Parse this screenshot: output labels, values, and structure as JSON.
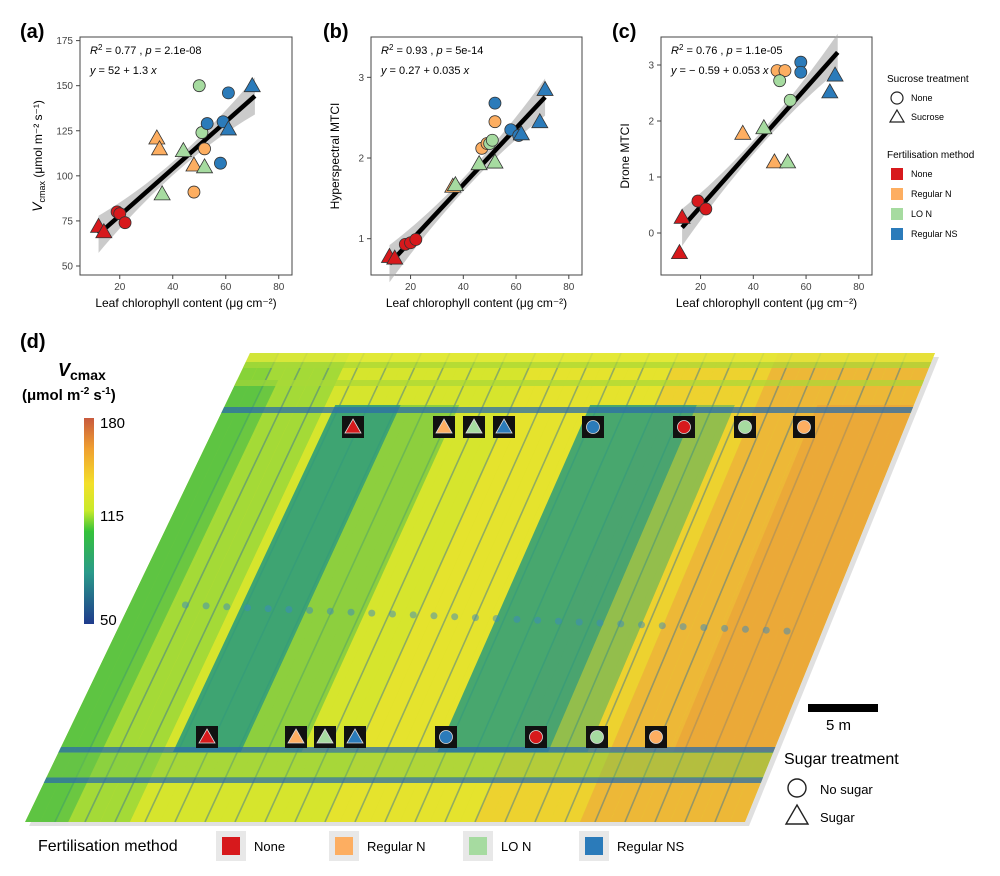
{
  "panels": {
    "a": "(a)",
    "b": "(b)",
    "c": "(c)",
    "d": "(d)"
  },
  "colors": {
    "None": "#d7191c",
    "Regular N": "#fdae61",
    "LO N": "#a6dba0",
    "Regular NS": "#2b7bba"
  },
  "chart_data": [
    {
      "type": "scatter",
      "id": "a",
      "stats": {
        "r2_text": "= 0.77 , ",
        "p_text": "= 2.1e-08",
        "eq_text": "= 52 + 1.3 "
      },
      "xlabel": "Leaf chlorophyll content  (μg cm⁻²)",
      "ylabel_main": "V",
      "ylabel_sub": "cmax",
      "ylabel_unit": "(μmol m⁻² s⁻¹)",
      "xlim": [
        5,
        85
      ],
      "ylim": [
        45,
        177
      ],
      "xticks": [
        20,
        40,
        60,
        80
      ],
      "yticks": [
        50,
        75,
        100,
        125,
        150,
        175
      ],
      "fit": {
        "intercept": 52,
        "slope": 1.3,
        "x0": 12,
        "x1": 71
      },
      "points": [
        {
          "x": 12,
          "y": 72,
          "g": "None",
          "s": "tri"
        },
        {
          "x": 14,
          "y": 69,
          "g": "None",
          "s": "tri"
        },
        {
          "x": 19,
          "y": 80,
          "g": "None",
          "s": "circ"
        },
        {
          "x": 20,
          "y": 79,
          "g": "None",
          "s": "circ"
        },
        {
          "x": 22,
          "y": 74,
          "g": "None",
          "s": "circ"
        },
        {
          "x": 34,
          "y": 121,
          "g": "Regular N",
          "s": "tri"
        },
        {
          "x": 35,
          "y": 115,
          "g": "Regular N",
          "s": "tri"
        },
        {
          "x": 48,
          "y": 106,
          "g": "Regular N",
          "s": "tri"
        },
        {
          "x": 48,
          "y": 91,
          "g": "Regular N",
          "s": "circ"
        },
        {
          "x": 52,
          "y": 115,
          "g": "Regular N",
          "s": "circ"
        },
        {
          "x": 36,
          "y": 90,
          "g": "LO N",
          "s": "tri"
        },
        {
          "x": 44,
          "y": 114,
          "g": "LO N",
          "s": "tri"
        },
        {
          "x": 52,
          "y": 105,
          "g": "LO N",
          "s": "tri"
        },
        {
          "x": 50,
          "y": 150,
          "g": "LO N",
          "s": "circ"
        },
        {
          "x": 51,
          "y": 124,
          "g": "LO N",
          "s": "circ"
        },
        {
          "x": 53,
          "y": 129,
          "g": "Regular NS",
          "s": "circ"
        },
        {
          "x": 58,
          "y": 107,
          "g": "Regular NS",
          "s": "circ"
        },
        {
          "x": 59,
          "y": 130,
          "g": "Regular NS",
          "s": "circ"
        },
        {
          "x": 61,
          "y": 146,
          "g": "Regular NS",
          "s": "circ"
        },
        {
          "x": 61,
          "y": 126,
          "g": "Regular NS",
          "s": "tri"
        },
        {
          "x": 70,
          "y": 150,
          "g": "Regular NS",
          "s": "tri"
        }
      ]
    },
    {
      "type": "scatter",
      "id": "b",
      "stats": {
        "r2_text": "= 0.93 , ",
        "p_text": "= 5e-14",
        "eq_text": "= 0.27 + 0.035 "
      },
      "xlabel": "Leaf chlorophyll content  (μg cm⁻²)",
      "ylabel": "Hyperspectral MTCI",
      "xlim": [
        5,
        85
      ],
      "ylim": [
        0.55,
        3.5
      ],
      "xticks": [
        20,
        40,
        60,
        80
      ],
      "yticks": [
        1,
        2,
        3
      ],
      "fit": {
        "intercept": 0.27,
        "slope": 0.035,
        "x0": 12,
        "x1": 71
      },
      "points": [
        {
          "x": 12,
          "y": 0.78,
          "g": "None",
          "s": "tri"
        },
        {
          "x": 14,
          "y": 0.76,
          "g": "None",
          "s": "tri"
        },
        {
          "x": 18,
          "y": 0.93,
          "g": "None",
          "s": "circ"
        },
        {
          "x": 20,
          "y": 0.95,
          "g": "None",
          "s": "circ"
        },
        {
          "x": 22,
          "y": 0.99,
          "g": "None",
          "s": "circ"
        },
        {
          "x": 36,
          "y": 1.65,
          "g": "Regular N",
          "s": "tri"
        },
        {
          "x": 47,
          "y": 2.12,
          "g": "Regular N",
          "s": "circ"
        },
        {
          "x": 49,
          "y": 2.18,
          "g": "Regular N",
          "s": "circ"
        },
        {
          "x": 52,
          "y": 2.45,
          "g": "Regular N",
          "s": "circ"
        },
        {
          "x": 37,
          "y": 1.67,
          "g": "LO N",
          "s": "tri"
        },
        {
          "x": 46,
          "y": 1.93,
          "g": "LO N",
          "s": "tri"
        },
        {
          "x": 50,
          "y": 2.18,
          "g": "LO N",
          "s": "circ"
        },
        {
          "x": 51,
          "y": 2.22,
          "g": "LO N",
          "s": "circ"
        },
        {
          "x": 52,
          "y": 1.95,
          "g": "LO N",
          "s": "tri"
        },
        {
          "x": 52,
          "y": 2.68,
          "g": "Regular NS",
          "s": "circ"
        },
        {
          "x": 58,
          "y": 2.35,
          "g": "Regular NS",
          "s": "circ"
        },
        {
          "x": 61,
          "y": 2.28,
          "g": "Regular NS",
          "s": "circ"
        },
        {
          "x": 62,
          "y": 2.3,
          "g": "Regular NS",
          "s": "tri"
        },
        {
          "x": 69,
          "y": 2.45,
          "g": "Regular NS",
          "s": "tri"
        },
        {
          "x": 71,
          "y": 2.85,
          "g": "Regular NS",
          "s": "tri"
        }
      ]
    },
    {
      "type": "scatter",
      "id": "c",
      "stats": {
        "r2_text": "= 0.76 , ",
        "p_text": "= 1.1e-05",
        "eq_text": "= − 0.59 + 0.053 "
      },
      "xlabel": "Leaf chlorophyll content  (μg cm⁻²)",
      "ylabel": "Drone MTCI",
      "xlim": [
        5,
        85
      ],
      "ylim": [
        -0.75,
        3.5
      ],
      "xticks": [
        20,
        40,
        60,
        80
      ],
      "yticks": [
        0,
        1,
        2,
        3
      ],
      "fit": {
        "intercept": -0.59,
        "slope": 0.053,
        "x0": 13,
        "x1": 72
      },
      "points": [
        {
          "x": 12,
          "y": -0.35,
          "g": "None",
          "s": "tri"
        },
        {
          "x": 13,
          "y": 0.28,
          "g": "None",
          "s": "tri"
        },
        {
          "x": 19,
          "y": 0.57,
          "g": "None",
          "s": "circ"
        },
        {
          "x": 22,
          "y": 0.43,
          "g": "None",
          "s": "circ"
        },
        {
          "x": 36,
          "y": 1.78,
          "g": "Regular N",
          "s": "tri"
        },
        {
          "x": 49,
          "y": 2.9,
          "g": "Regular N",
          "s": "circ"
        },
        {
          "x": 52,
          "y": 2.9,
          "g": "Regular N",
          "s": "circ"
        },
        {
          "x": 48,
          "y": 1.27,
          "g": "Regular N",
          "s": "tri"
        },
        {
          "x": 44,
          "y": 1.88,
          "g": "LO N",
          "s": "tri"
        },
        {
          "x": 53,
          "y": 1.27,
          "g": "LO N",
          "s": "tri"
        },
        {
          "x": 50,
          "y": 2.72,
          "g": "LO N",
          "s": "circ"
        },
        {
          "x": 54,
          "y": 2.37,
          "g": "LO N",
          "s": "circ"
        },
        {
          "x": 58,
          "y": 3.05,
          "g": "Regular NS",
          "s": "circ"
        },
        {
          "x": 58,
          "y": 2.87,
          "g": "Regular NS",
          "s": "circ"
        },
        {
          "x": 69,
          "y": 2.52,
          "g": "Regular NS",
          "s": "tri"
        },
        {
          "x": 71,
          "y": 2.82,
          "g": "Regular NS",
          "s": "tri"
        }
      ]
    },
    {
      "type": "heatmap",
      "id": "d",
      "title_main": "V",
      "title_sub": "cmax",
      "title_unit": "(μmol m",
      "title_unit2": " s",
      "title_unit_end": ")",
      "exp_neg2": "-2",
      "exp_neg1": "-1",
      "colorbar": {
        "min": 50,
        "mid": 115,
        "max": 180,
        "labels": [
          "180",
          "115",
          "50"
        ]
      },
      "scale_bar_label": "5 m",
      "top_markers": [
        {
          "g": "None",
          "s": "tri"
        },
        {
          "g": "Regular N",
          "s": "tri"
        },
        {
          "g": "LO N",
          "s": "tri"
        },
        {
          "g": "Regular NS",
          "s": "tri"
        },
        {
          "g": "Regular NS",
          "s": "circ"
        },
        {
          "g": "None",
          "s": "circ"
        },
        {
          "g": "LO N",
          "s": "circ"
        },
        {
          "g": "Regular N",
          "s": "circ"
        }
      ],
      "bottom_markers": [
        {
          "g": "None",
          "s": "tri"
        },
        {
          "g": "Regular N",
          "s": "tri"
        },
        {
          "g": "LO N",
          "s": "tri"
        },
        {
          "g": "Regular NS",
          "s": "tri"
        },
        {
          "g": "Regular NS",
          "s": "circ"
        },
        {
          "g": "None",
          "s": "circ"
        },
        {
          "g": "LO N",
          "s": "circ"
        },
        {
          "g": "Regular N",
          "s": "circ"
        }
      ]
    }
  ],
  "legend_top": {
    "sucrose_title": "Sucrose treatment",
    "none": "None",
    "sucrose": "Sucrose",
    "fert_title": "Fertilisation method",
    "items": [
      "None",
      "Regular N",
      "LO N",
      "Regular NS"
    ]
  },
  "legend_bottom": {
    "sugar_title": "Sugar treatment",
    "no_sugar": "No sugar",
    "sugar": "Sugar",
    "fert_title": "Fertilisation method",
    "items": [
      "None",
      "Regular N",
      "LO N",
      "Regular NS"
    ]
  }
}
